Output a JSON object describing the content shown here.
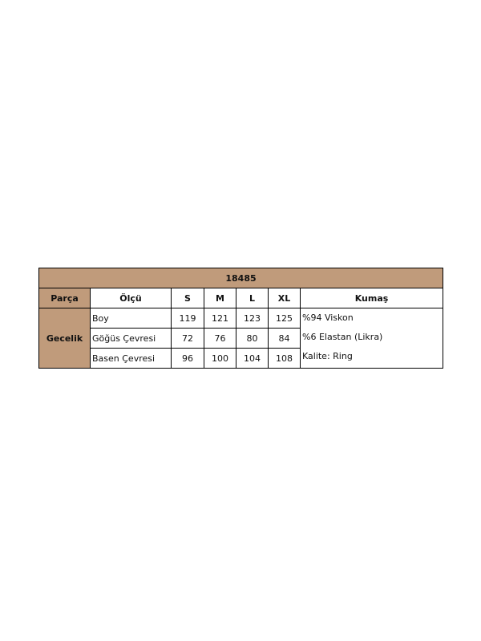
{
  "title": "18485",
  "headers": [
    "Parça",
    "Ölçü",
    "S",
    "M",
    "L",
    "XL",
    "Kumaş"
  ],
  "part": "Gecelik",
  "rows": [
    {
      "label": "Boy",
      "values": [
        "119",
        "121",
        "123",
        "125"
      ]
    },
    {
      "label": "Göğüs Çevresi",
      "values": [
        "72",
        "76",
        "80",
        "84"
      ]
    },
    {
      "label": "Basen Çevresi",
      "values": [
        "96",
        "100",
        "104",
        "108"
      ]
    }
  ],
  "fabric": [
    "%94 Viskon",
    "%6 Elastan (Likra)",
    "Kalite: Ring"
  ],
  "colors": {
    "header_bg": "#c09b7b",
    "border": "#000000"
  }
}
